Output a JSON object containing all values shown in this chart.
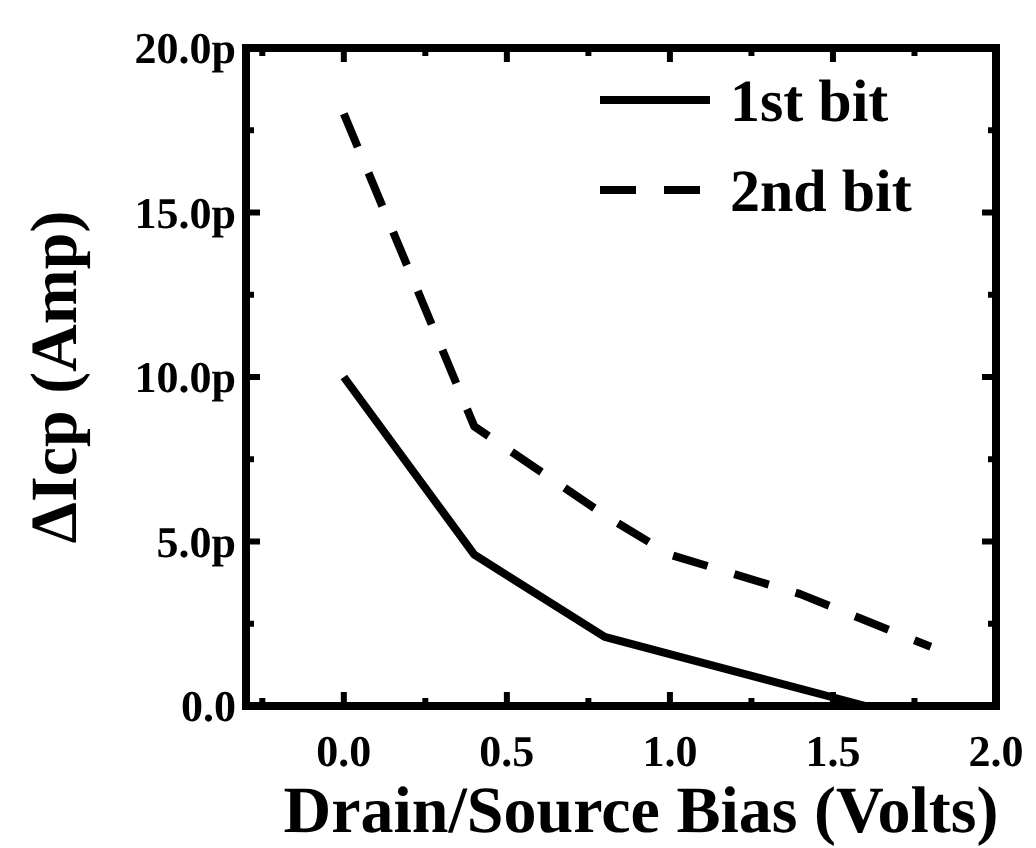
{
  "chart_data": {
    "type": "line",
    "xlabel": "Drain/Source Bias (Volts)",
    "ylabel": "ΔIcp (Amp)",
    "xlim": [
      -0.3,
      2.0
    ],
    "xticks": [
      {
        "value": -0.25,
        "label": null
      },
      {
        "value": 0,
        "label": "0.0"
      },
      {
        "value": 0.25,
        "label": null
      },
      0.5,
      {
        "value": 0.75,
        "label": null
      },
      {
        "value": 1,
        "label": "1.0"
      },
      {
        "value": 1.25,
        "label": null
      },
      1.5,
      {
        "value": 1.75,
        "label": null
      },
      {
        "value": 2,
        "label": "2.0"
      }
    ],
    "ylim": [
      0,
      20
    ],
    "yticks": [
      {
        "value": 0,
        "label": "0.0"
      },
      {
        "value": 2.5,
        "label": null
      },
      {
        "value": 5,
        "label": "5.0p"
      },
      {
        "value": 7.5,
        "label": null
      },
      {
        "value": 10,
        "label": "10.0p"
      },
      {
        "value": 12.5,
        "label": null
      },
      {
        "value": 15,
        "label": "15.0p"
      },
      {
        "value": 17.5,
        "label": null
      },
      {
        "value": 20,
        "label": "20.0p"
      }
    ],
    "legend": "top right",
    "grid": false,
    "series": [
      {
        "name": "1st bit",
        "color": "#000000",
        "line_style": "solid",
        "x": [
          0,
          0.4,
          0.8,
          1.6
        ],
        "values": [
          10,
          4.6,
          2.1,
          0
        ]
      },
      {
        "name": "2nd bit",
        "color": "#000000",
        "line_style": "dashed",
        "x": [
          0,
          0.4,
          0.8,
          1.0,
          1.4,
          1.8
        ],
        "values": [
          18,
          8.5,
          5.8,
          4.6,
          3.4,
          1.8
        ]
      }
    ]
  }
}
